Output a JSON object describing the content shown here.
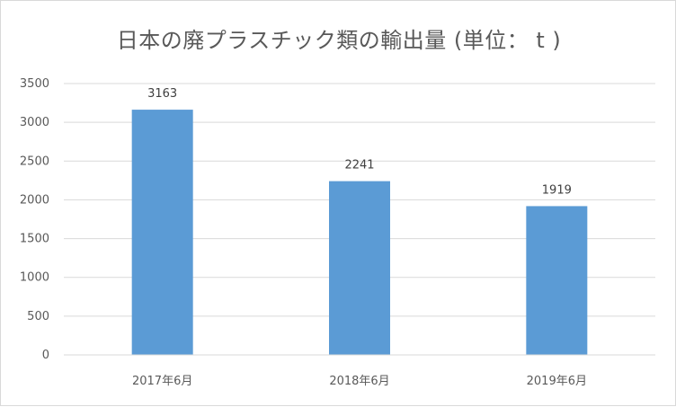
{
  "chart_data": {
    "type": "bar",
    "title": "日本の廃プラスチック類の輸出量 (単位： t )",
    "categories": [
      "2017年6月",
      "2018年6月",
      "2019年6月"
    ],
    "values": [
      3163,
      2241,
      1919
    ],
    "data_labels": [
      "3163",
      "2241",
      "1919"
    ],
    "y_ticks": [
      "0",
      "500",
      "1000",
      "1500",
      "2000",
      "2500",
      "3000",
      "3500"
    ],
    "ylim": [
      0,
      3500
    ],
    "grid": true,
    "legend": "none",
    "bar_color": "#5b9bd5",
    "gridline_color": "#d9d9d9"
  }
}
